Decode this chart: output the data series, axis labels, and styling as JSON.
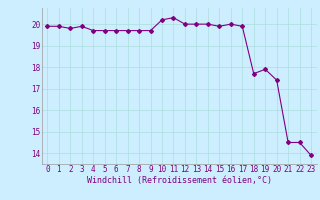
{
  "x": [
    0,
    1,
    2,
    3,
    4,
    5,
    6,
    7,
    8,
    9,
    10,
    11,
    12,
    13,
    14,
    15,
    16,
    17,
    18,
    19,
    20,
    21,
    22,
    23
  ],
  "y": [
    19.9,
    19.9,
    19.8,
    19.9,
    19.7,
    19.7,
    19.7,
    19.7,
    19.7,
    19.7,
    20.2,
    20.3,
    20.0,
    20.0,
    20.0,
    19.9,
    20.0,
    19.9,
    17.7,
    17.9,
    17.4,
    14.5,
    14.5,
    13.9
  ],
  "line_color": "#800080",
  "marker": "D",
  "marker_size": 2.0,
  "background_color": "#cceeff",
  "grid_color": "#aadddd",
  "xlabel": "Windchill (Refroidissement éolien,°C)",
  "xlabel_color": "#800080",
  "tick_color": "#800080",
  "ylim": [
    13.5,
    20.75
  ],
  "xlim": [
    -0.5,
    23.5
  ],
  "yticks": [
    14,
    15,
    16,
    17,
    18,
    19,
    20
  ],
  "xticks": [
    0,
    1,
    2,
    3,
    4,
    5,
    6,
    7,
    8,
    9,
    10,
    11,
    12,
    13,
    14,
    15,
    16,
    17,
    18,
    19,
    20,
    21,
    22,
    23
  ],
  "font_family": "monospace",
  "tick_fontsize": 5.5,
  "xlabel_fontsize": 6.0
}
